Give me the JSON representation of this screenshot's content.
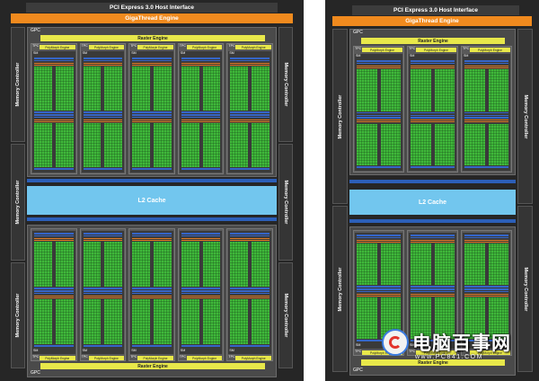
{
  "interface": {
    "host_label": "PCI Express 3.0 Host Interface",
    "giga_label": "GigaThread Engine",
    "memory_controller_label": "Memory Controller",
    "l2_label": "L2 Cache",
    "gpc_label": "GPC",
    "raster_label": "Raster Engine",
    "tpc_label": "TPC",
    "poly_label": "PolyMorph Engine",
    "sm_label": "SM"
  },
  "chips": [
    {
      "name": "left",
      "gpcs_top": 1,
      "gpcs_bottom": 1,
      "tpcs_per_gpc": 5
    },
    {
      "name": "right",
      "gpcs_top": 1,
      "gpcs_bottom": 1,
      "tpcs_per_gpc": 3
    }
  ],
  "watermark": {
    "brand": "电脑百事网",
    "url": "www.PC841.COM"
  },
  "colors": {
    "host_bar": "#3c3c3c",
    "giga_bar": "#f08a1e",
    "raster": "#e8e84a",
    "core": "#3fb83a",
    "l2": "#72c6ee",
    "blue": "#3565c8"
  }
}
